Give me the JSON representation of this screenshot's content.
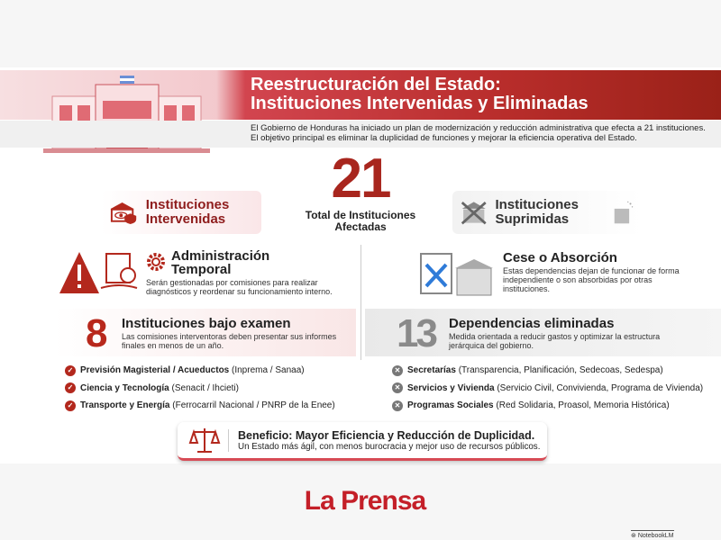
{
  "header": {
    "title_line1": "Reestructuración del Estado:",
    "title_line2": "Instituciones Intervenidas y Eliminadas",
    "intro_line1": "El Gobierno de Honduras ha iniciado un plan de modernización y reducción administrativa que efecta a 21 instituciones.",
    "intro_line2": "El objetivo principal es eliminar la duplicidad de funciones y mejorar la eficiencia operativa del Estado."
  },
  "total": {
    "number": "21",
    "label": "Total de Instituciones Afectadas"
  },
  "left": {
    "pill": "Instituciones Intervenidas",
    "section_title": "Administración Temporal",
    "section_desc": "Serán gestionadas por comisiones para realizar diagnósticos y reordenar su funcionamiento interno.",
    "count": "8",
    "count_title": "Instituciones bajo examen",
    "count_desc": "Las comisiones interventoras deben presentar sus informes finales en menos de un año.",
    "items": [
      {
        "bold": "Previsión Magisterial / Acueductos",
        "rest": " (Inprema / Sanaa)"
      },
      {
        "bold": "Ciencia y Tecnología",
        "rest": " (Senacit / Ihcieti)"
      },
      {
        "bold": "Transporte y Energía",
        "rest": " (Ferrocarril Nacional / PNRP de la Enee)"
      }
    ]
  },
  "right": {
    "pill": "Instituciones Suprimidas",
    "section_title": "Cese o Absorción",
    "section_desc": "Estas dependencias dejan de funcionar de forma independiente o son absorbidas por otras instituciones.",
    "count": "13",
    "count_title": "Dependencias eliminadas",
    "count_desc": "Medida orientada a reducir gastos y optimizar la estructura jerárquica del gobierno.",
    "items": [
      {
        "bold": "Secretarías",
        "rest": " (Transparencia, Planificación, Sedecoas, Sedespa)"
      },
      {
        "bold": "Servicios y Vivienda",
        "rest": " (Servicio Civil, Convivienda, Programa de Vivienda)"
      },
      {
        "bold": "Programas Sociales",
        "rest": " (Red Solidaria, Proasol, Memoria Histórica)"
      }
    ]
  },
  "benefit": {
    "title": "Beneficio: Mayor Eficiencia y Reducción de Duplicidad.",
    "desc": "Un Estado más ágil, con menos burocracia y mejor uso de recursos públicos."
  },
  "brand": "La Prensa",
  "watermark": "NotebookLM",
  "colors": {
    "accent": "#b3281d",
    "gray": "#777777",
    "brand": "#c41f28"
  }
}
